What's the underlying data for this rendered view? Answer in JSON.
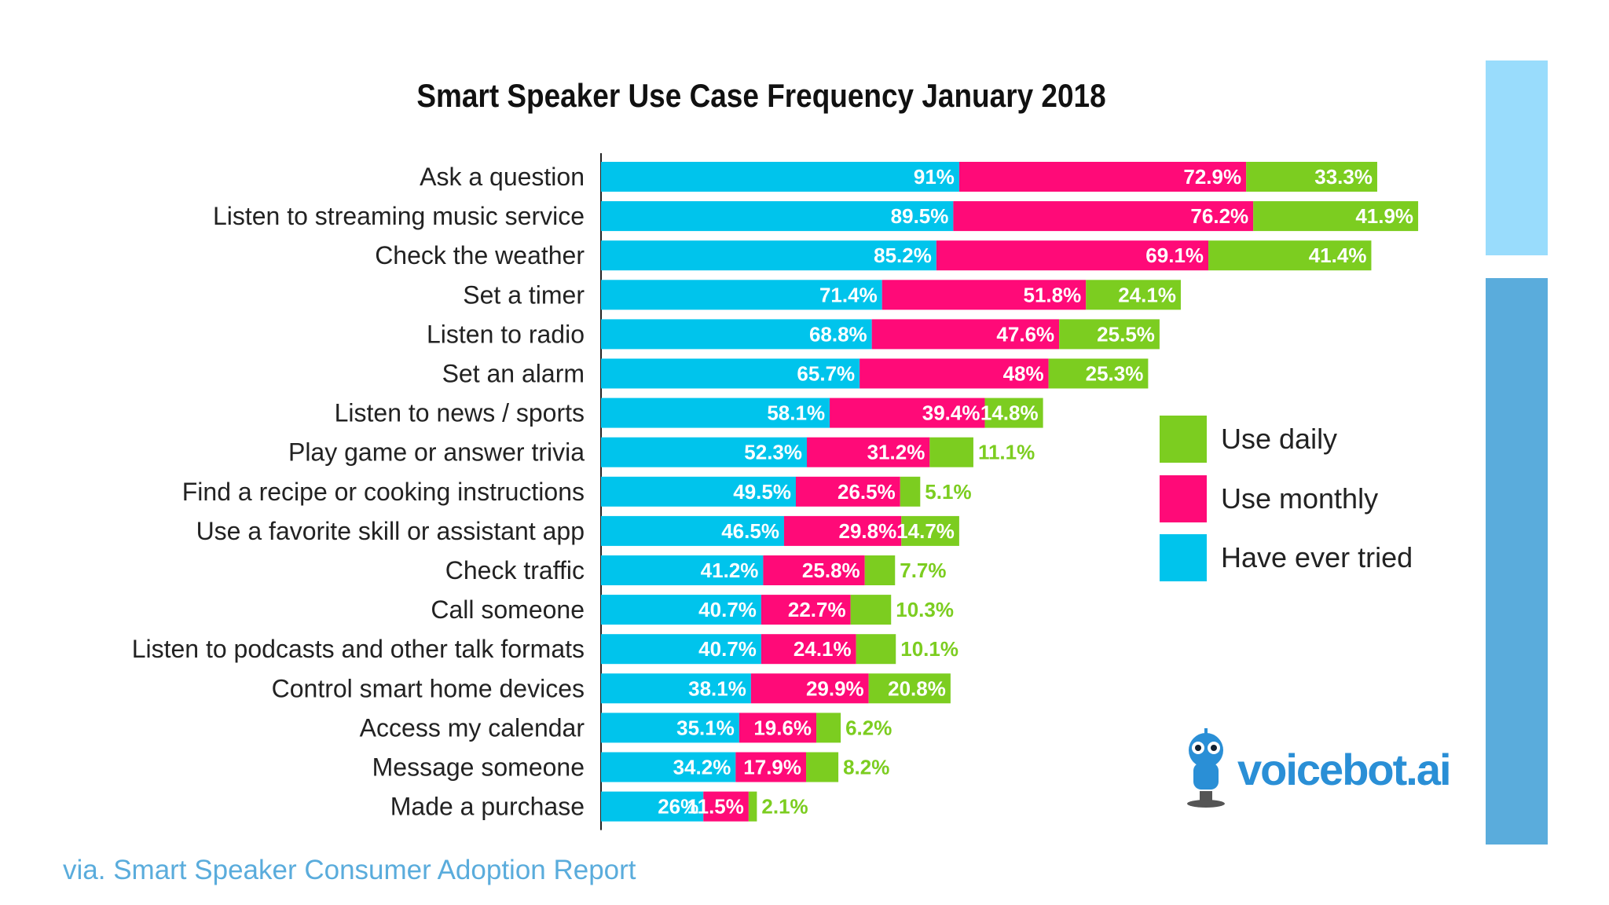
{
  "chart_data": {
    "type": "bar",
    "orientation": "horizontal",
    "stacked_segments": true,
    "title": "Smart Speaker Use Case Frequency January 2018",
    "categories": [
      "Ask a question",
      "Listen to streaming music service",
      "Check the weather",
      "Set a timer",
      "Listen to radio",
      "Set an alarm",
      "Listen to news / sports",
      "Play game or answer trivia",
      "Find a recipe or cooking instructions",
      "Use a favorite skill or assistant app",
      "Check traffic",
      "Call someone",
      "Listen to podcasts and other talk formats",
      "Control smart home devices",
      "Access my calendar",
      "Message someone",
      "Made a purchase"
    ],
    "series": [
      {
        "name": "Have ever tried",
        "color": "#00c4ec",
        "values": [
          91,
          89.5,
          85.2,
          71.4,
          68.8,
          65.7,
          58.1,
          52.3,
          49.5,
          46.5,
          41.2,
          40.7,
          40.7,
          38.1,
          35.1,
          34.2,
          26
        ]
      },
      {
        "name": "Use monthly",
        "color": "#ff0a78",
        "values": [
          72.9,
          76.2,
          69.1,
          51.8,
          47.6,
          48,
          39.4,
          31.2,
          26.5,
          29.8,
          25.8,
          22.7,
          24.1,
          29.9,
          19.6,
          17.9,
          11.5
        ]
      },
      {
        "name": "Use daily",
        "color": "#7ccd20",
        "values": [
          33.3,
          41.9,
          41.4,
          24.1,
          25.5,
          25.3,
          14.8,
          11.1,
          5.1,
          14.7,
          7.7,
          10.3,
          10.1,
          20.8,
          6.2,
          8.2,
          2.1
        ]
      }
    ],
    "data_labels": [
      [
        "91%",
        "89.5%",
        "85.2%",
        "71.4%",
        "68.8%",
        "65.7%",
        "58.1%",
        "52.3%",
        "49.5%",
        "46.5%",
        "41.2%",
        "40.7%",
        "40.7%",
        "38.1%",
        "35.1%",
        "34.2%",
        "26%"
      ],
      [
        "72.9%",
        "76.2%",
        "69.1%",
        "51.8%",
        "47.6%",
        "48%",
        "39.4%",
        "31.2%",
        "26.5%",
        "29.8%",
        "25.8%",
        "22.7%",
        "24.1%",
        "29.9%",
        "19.6%",
        "17.9%",
        "11.5%"
      ],
      [
        "33.3%",
        "41.9%",
        "41.4%",
        "24.1%",
        "25.5%",
        "25.3%",
        "14.8%",
        "11.1%",
        "5.1%",
        "14.7%",
        "7.7%",
        "10.3%",
        "10.1%",
        "20.8%",
        "6.2%",
        "8.2%",
        "2.1%"
      ]
    ],
    "legend_placement": "right",
    "grid": false
  },
  "legend": [
    {
      "label": "Use daily",
      "color": "#7ccd20"
    },
    {
      "label": "Use monthly",
      "color": "#ff0a78"
    },
    {
      "label": "Have ever tried",
      "color": "#00c4ec"
    }
  ],
  "logo": {
    "text": "voicebot.ai",
    "mark": "TM"
  },
  "footer": "via. Smart Speaker Consumer Adoption Report",
  "side_colors": [
    "#99dcfc",
    "#5aacdc"
  ]
}
